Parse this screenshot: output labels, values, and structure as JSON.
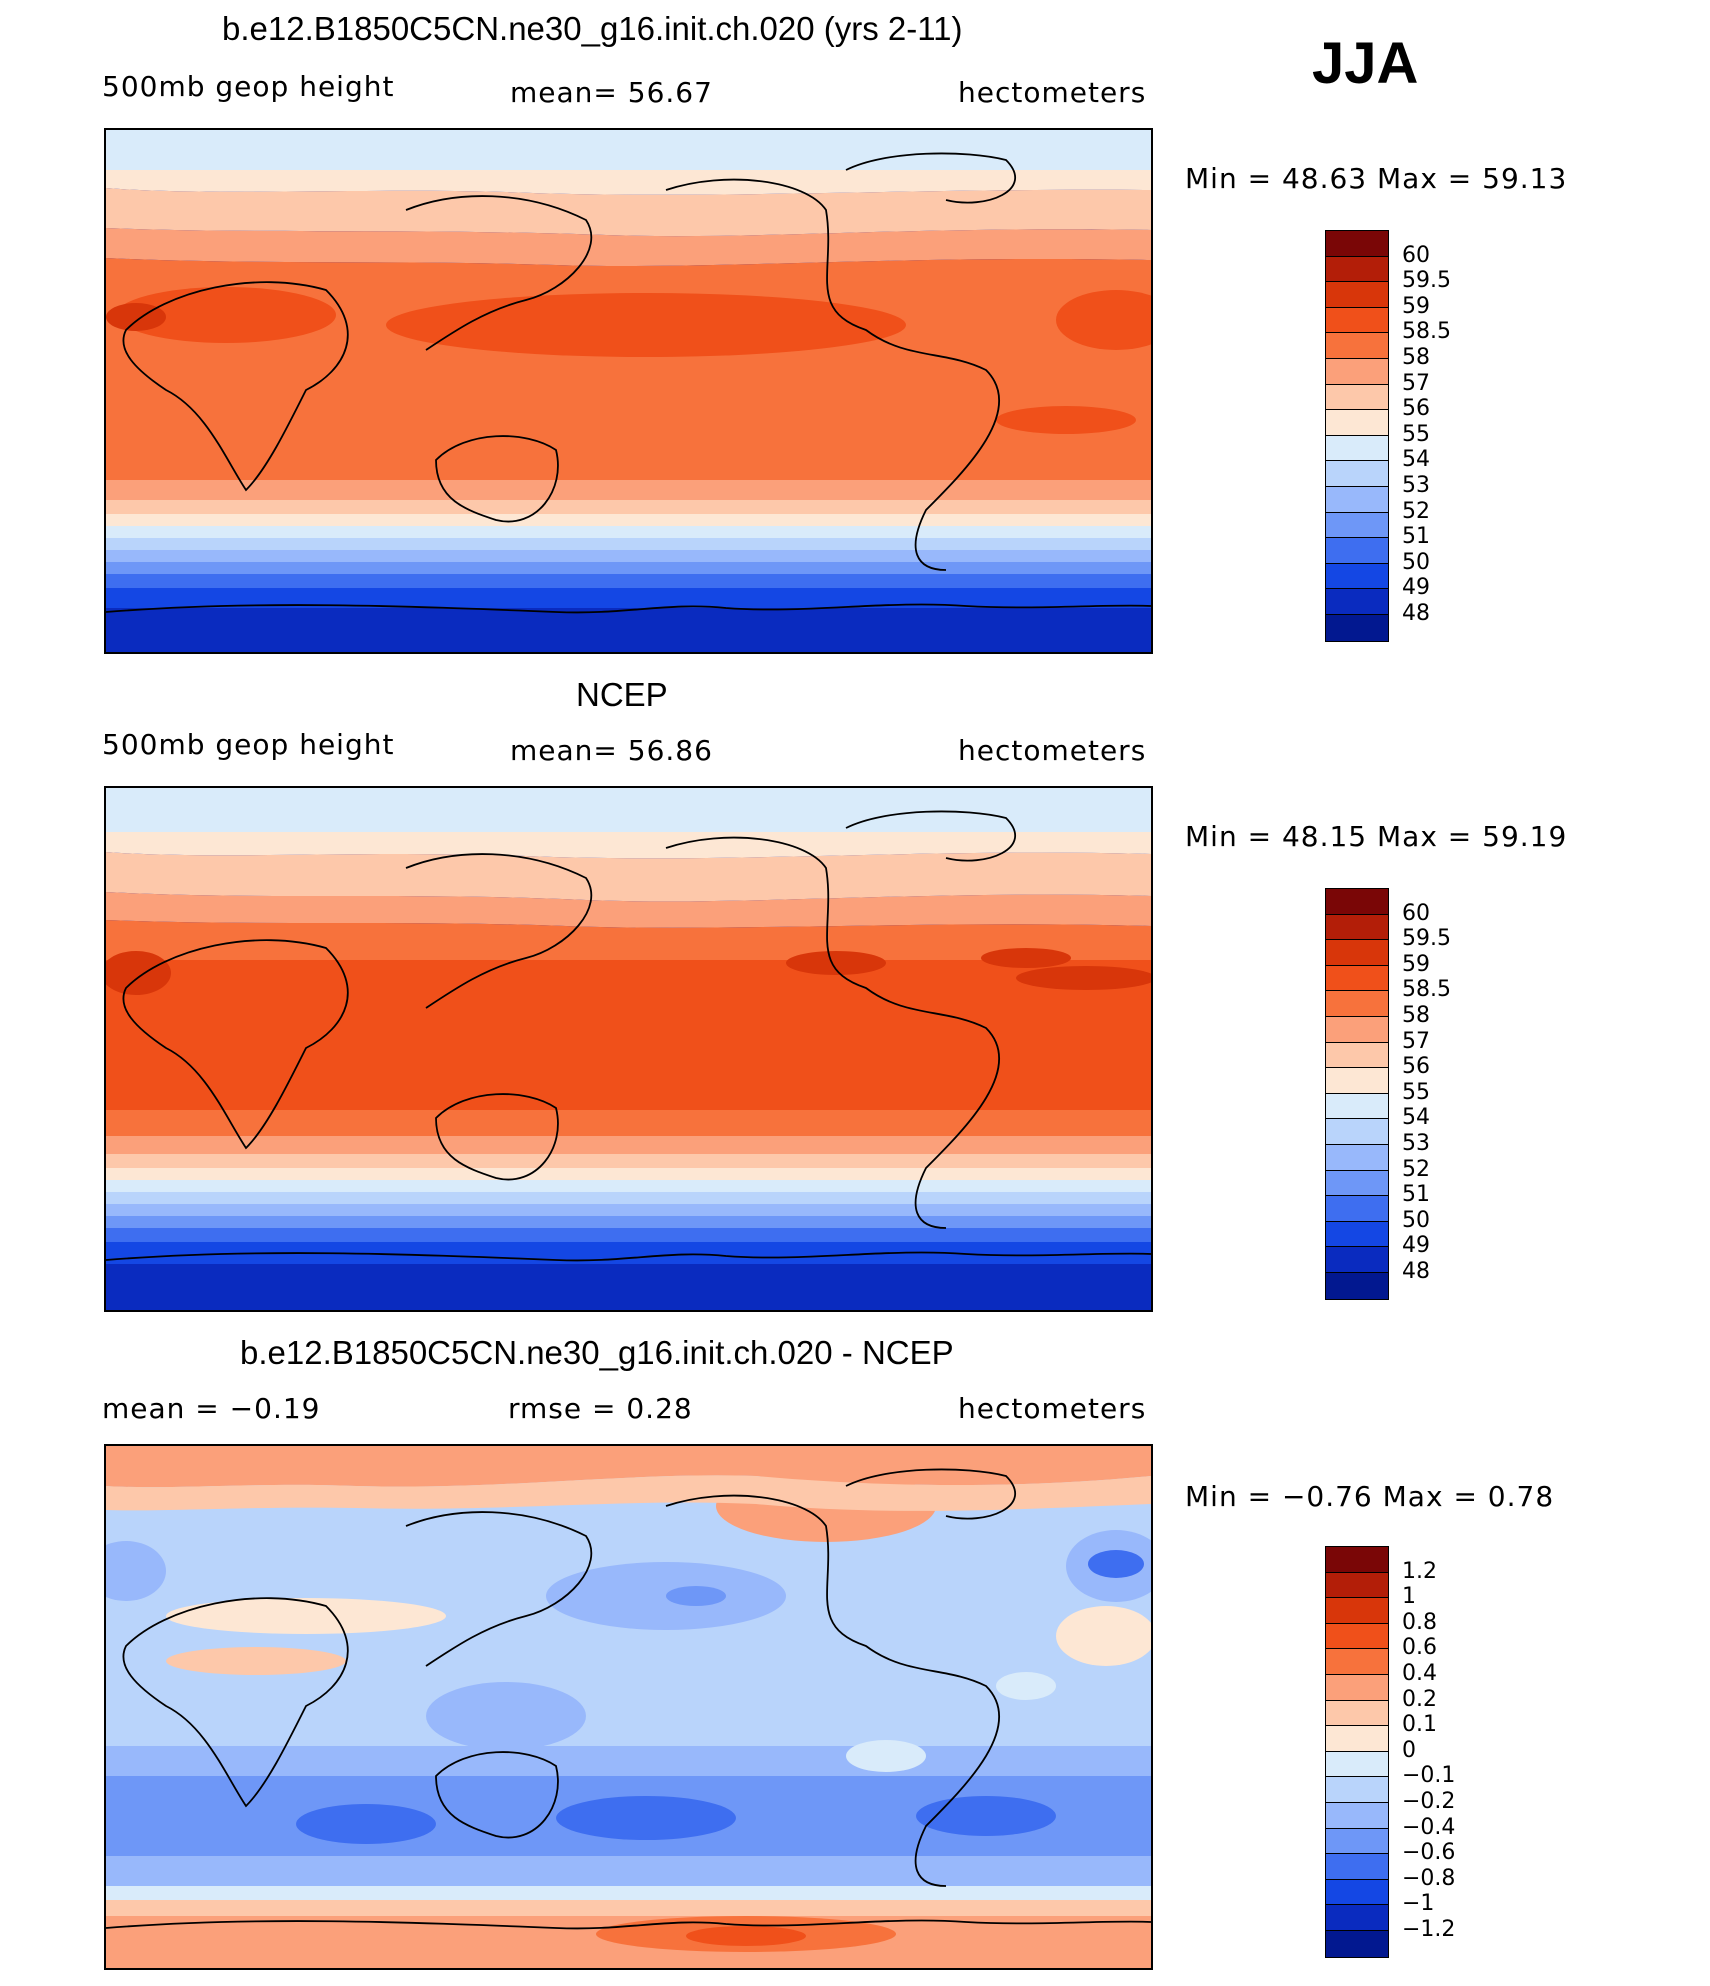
{
  "season": "JJA",
  "panels": [
    {
      "title": "b.e12.B1850C5CN.ne30_g16.init.ch.020 (yrs 2-11)",
      "left_label": "500mb  geop  height",
      "center_label": "mean=   56.67",
      "units": "hectometers",
      "minmax": "Min  =    48.63  Max  =    59.13",
      "colorbar": {
        "labels": [
          "60",
          "59.5",
          "59",
          "58.5",
          "58",
          "57",
          "56",
          "55",
          "54",
          "53",
          "52",
          "51",
          "50",
          "49",
          "48"
        ],
        "colors": [
          "#7a0606",
          "#b31e08",
          "#d8360a",
          "#f0501a",
          "#f7723c",
          "#fba07a",
          "#fdc8aa",
          "#fde7d4",
          "#d9ebfa",
          "#b9d4fb",
          "#98b8fb",
          "#6e97f7",
          "#3e6ef0",
          "#1447e4",
          "#0a2bbf",
          "#021890"
        ]
      }
    },
    {
      "title": "NCEP",
      "left_label": "500mb  geop  height",
      "center_label": "mean=   56.86",
      "units": "hectometers",
      "minmax": "Min  =    48.15  Max  =    59.19",
      "colorbar": {
        "labels": [
          "60",
          "59.5",
          "59",
          "58.5",
          "58",
          "57",
          "56",
          "55",
          "54",
          "53",
          "52",
          "51",
          "50",
          "49",
          "48"
        ],
        "colors": [
          "#7a0606",
          "#b31e08",
          "#d8360a",
          "#f0501a",
          "#f7723c",
          "#fba07a",
          "#fdc8aa",
          "#fde7d4",
          "#d9ebfa",
          "#b9d4fb",
          "#98b8fb",
          "#6e97f7",
          "#3e6ef0",
          "#1447e4",
          "#0a2bbf",
          "#021890"
        ]
      }
    },
    {
      "title": "b.e12.B1850C5CN.ne30_g16.init.ch.020 - NCEP",
      "left_label": "mean  =    −0.19",
      "center_label": "rmse  =     0.28",
      "units": "hectometers",
      "minmax": "Min  =   −0.76  Max  =     0.78",
      "colorbar": {
        "labels": [
          "1.2",
          "1",
          "0.8",
          "0.6",
          "0.4",
          "0.2",
          "0.1",
          "0",
          "−0.1",
          "−0.2",
          "−0.4",
          "−0.6",
          "−0.8",
          "−1",
          "−1.2"
        ],
        "colors": [
          "#7a0606",
          "#b31e08",
          "#d8360a",
          "#f0501a",
          "#f7723c",
          "#fba07a",
          "#fdc8aa",
          "#fde7d4",
          "#d9ebfa",
          "#b9d4fb",
          "#98b8fb",
          "#6e97f7",
          "#3e6ef0",
          "#1447e4",
          "#0a2bbf",
          "#021890"
        ]
      }
    }
  ]
}
